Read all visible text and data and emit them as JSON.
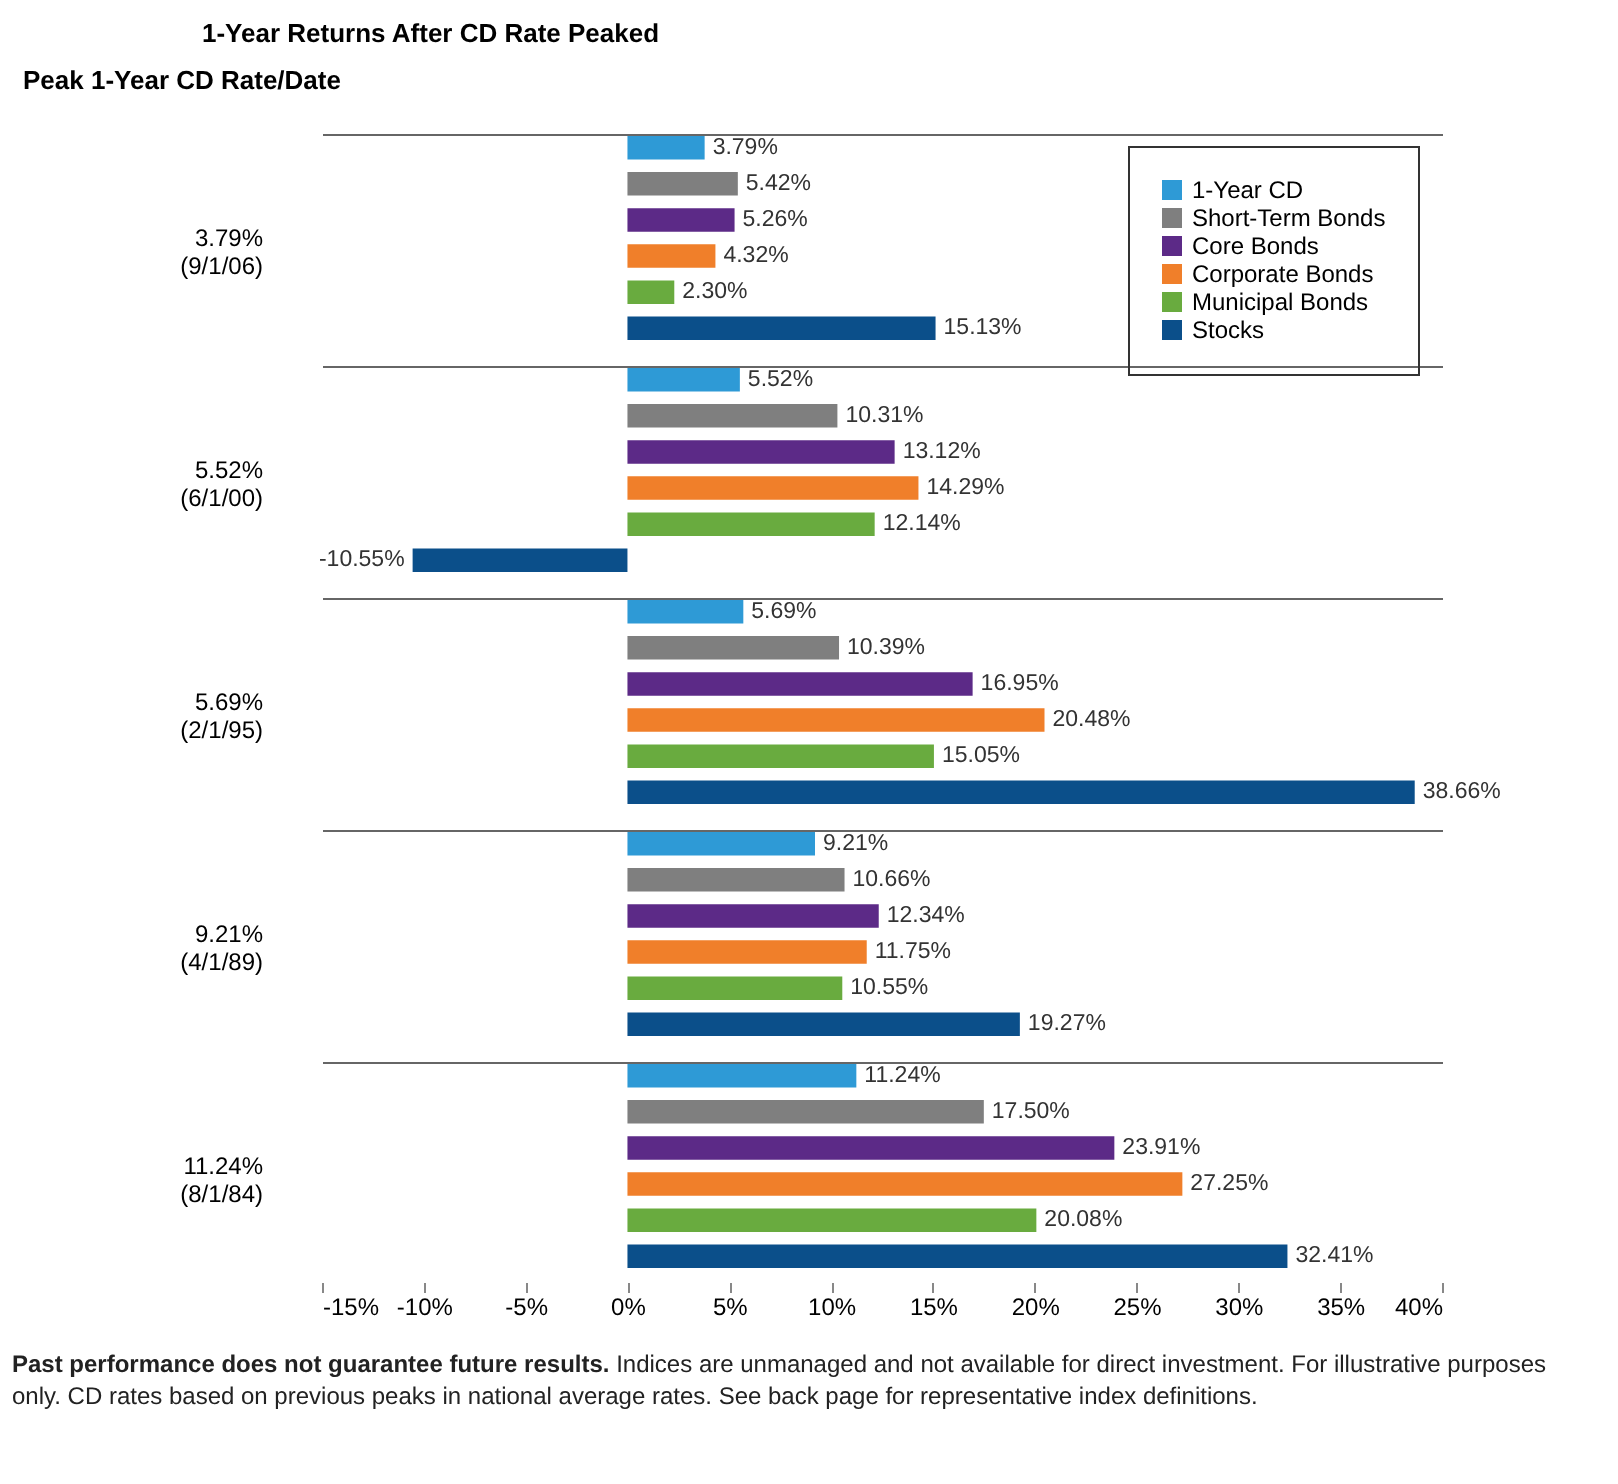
{
  "chart_data": {
    "type": "bar",
    "orientation": "horizontal",
    "title": "1-Year Returns After CD Rate Peaked",
    "ylabel": "Peak 1-Year CD Rate/Date",
    "categories": [
      "3.79% (9/1/06)",
      "5.52% (6/1/00)",
      "5.69% (2/1/95)",
      "9.21% (4/1/89)",
      "11.24% (8/1/84)"
    ],
    "series": [
      {
        "name": "1-Year CD",
        "color": "#2e9ad6",
        "values": [
          3.79,
          5.52,
          5.69,
          9.21,
          11.24
        ],
        "value_labels": [
          "3.79%",
          "5.52%",
          "5.69%",
          "9.21%",
          "11.24%"
        ]
      },
      {
        "name": "Short-Term Bonds",
        "color": "#7f7f7f",
        "values": [
          5.42,
          10.31,
          10.39,
          10.66,
          17.5
        ],
        "value_labels": [
          "5.42%",
          "10.31%",
          "10.39%",
          "10.66%",
          "17.50%"
        ]
      },
      {
        "name": "Core Bonds",
        "color": "#5c2a87",
        "values": [
          5.26,
          13.12,
          16.95,
          12.34,
          23.91
        ],
        "value_labels": [
          "5.26%",
          "13.12%",
          "16.95%",
          "12.34%",
          "23.91%"
        ]
      },
      {
        "name": "Corporate Bonds",
        "color": "#f07f2a",
        "values": [
          4.32,
          14.29,
          20.48,
          11.75,
          27.25
        ],
        "value_labels": [
          "4.32%",
          "14.29%",
          "20.48%",
          "11.75%",
          "27.25%"
        ]
      },
      {
        "name": "Municipal Bonds",
        "color": "#69ab3f",
        "values": [
          2.3,
          12.14,
          15.05,
          10.55,
          20.08
        ],
        "value_labels": [
          "2.30%",
          "12.14%",
          "15.05%",
          "10.55%",
          "20.08%"
        ]
      },
      {
        "name": "Stocks",
        "color": "#0b4f8a",
        "values": [
          15.13,
          -10.55,
          38.66,
          19.27,
          32.41
        ],
        "value_labels": [
          "15.13%",
          "-10.55%",
          "38.66%",
          "19.27%",
          "32.41%"
        ]
      }
    ],
    "xlim": [
      -15,
      40
    ],
    "xticks": [
      {
        "value": -15,
        "label": "-15%"
      },
      {
        "value": -10,
        "label": "-10%"
      },
      {
        "value": -5,
        "label": "-5%"
      },
      {
        "value": 0,
        "label": "0%"
      },
      {
        "value": 5,
        "label": "5%"
      },
      {
        "value": 10,
        "label": "10%"
      },
      {
        "value": 15,
        "label": "15%"
      },
      {
        "value": 20,
        "label": "20%"
      },
      {
        "value": 25,
        "label": "25%"
      },
      {
        "value": 30,
        "label": "30%"
      },
      {
        "value": 35,
        "label": "35%"
      },
      {
        "value": 40,
        "label": "40%"
      }
    ],
    "grid": "y",
    "legend": "top right",
    "annotations": [
      "Past performance does not guarantee future results.",
      "Indices are unmanaged and not available for direct investment. For illustrative purposes only. CD rates based on previous peaks in national average rates. See back page for representative index definitions."
    ]
  }
}
